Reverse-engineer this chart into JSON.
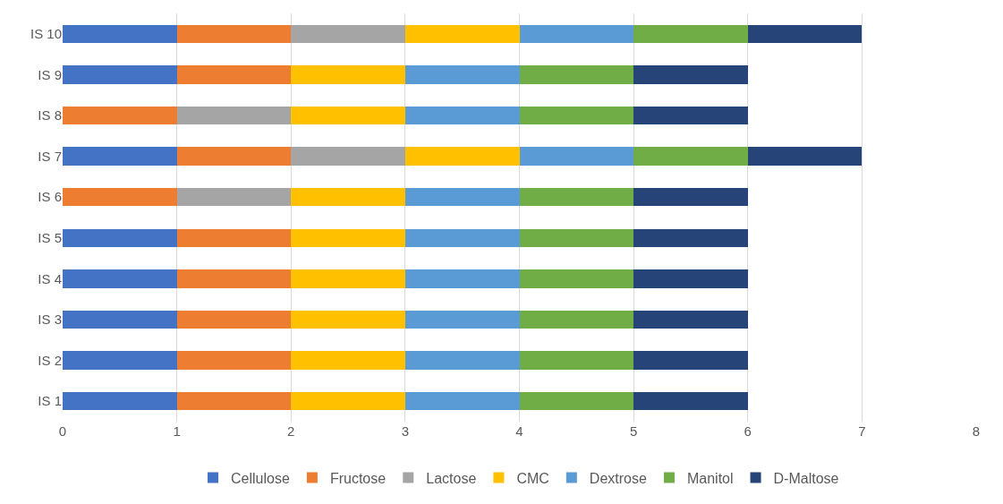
{
  "chart_data": {
    "type": "bar",
    "orientation": "horizontal",
    "stacked": true,
    "categories": [
      "IS 10",
      "IS 9",
      "IS 8",
      "IS 7",
      "IS 6",
      "IS 5",
      "IS 4",
      "IS 3",
      "IS 2",
      "IS 1"
    ],
    "series": [
      {
        "name": "Cellulose",
        "color": "#4472c4",
        "values": [
          1,
          1,
          0,
          1,
          0,
          1,
          1,
          1,
          1,
          1
        ]
      },
      {
        "name": "Fructose",
        "color": "#ed7d31",
        "values": [
          1,
          1,
          1,
          1,
          1,
          1,
          1,
          1,
          1,
          1
        ]
      },
      {
        "name": "Lactose",
        "color": "#a5a5a5",
        "values": [
          1,
          0,
          1,
          1,
          1,
          0,
          0,
          0,
          0,
          0
        ]
      },
      {
        "name": "CMC",
        "color": "#ffc000",
        "values": [
          1,
          1,
          1,
          1,
          1,
          1,
          1,
          1,
          1,
          1
        ]
      },
      {
        "name": "Dextrose",
        "color": "#5b9bd5",
        "values": [
          1,
          1,
          1,
          1,
          1,
          1,
          1,
          1,
          1,
          1
        ]
      },
      {
        "name": "Manitol",
        "color": "#70ad47",
        "values": [
          1,
          1,
          1,
          1,
          1,
          1,
          1,
          1,
          1,
          1
        ]
      },
      {
        "name": "D-Maltose",
        "color": "#264478",
        "values": [
          1,
          1,
          1,
          1,
          1,
          1,
          1,
          1,
          1,
          1
        ]
      }
    ],
    "xlim": [
      0,
      8
    ],
    "xticks": [
      0,
      1,
      2,
      3,
      4,
      5,
      6,
      7,
      8
    ],
    "grid": "x",
    "legend": "bottom"
  }
}
